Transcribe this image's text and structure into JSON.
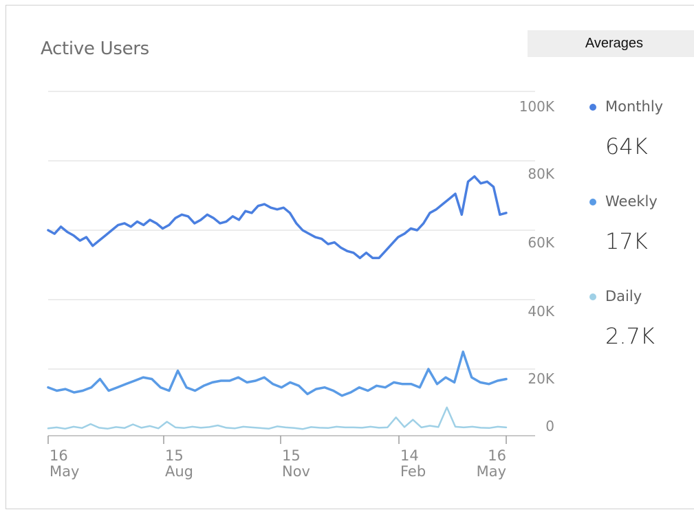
{
  "title": "Active Users",
  "averages_tab": "Averages",
  "legend": [
    {
      "label": "Monthly",
      "value": "64K",
      "color": "#4a7fe0"
    },
    {
      "label": "Weekly",
      "value": "17K",
      "color": "#5a9be6"
    },
    {
      "label": "Daily",
      "value": "2.7K",
      "color": "#9fd0e6"
    }
  ],
  "chart_data": {
    "type": "line",
    "y_ticks": [
      "100K",
      "80K",
      "60K",
      "40K",
      "20K",
      "0"
    ],
    "x_ticks": [
      {
        "day": "16",
        "month": "May"
      },
      {
        "day": "15",
        "month": "Aug"
      },
      {
        "day": "15",
        "month": "Nov"
      },
      {
        "day": "14",
        "month": "Feb"
      },
      {
        "day": "16",
        "month": "May"
      }
    ],
    "grid": true,
    "legend_position": "right",
    "series": [
      {
        "name": "Monthly",
        "color": "#4a7fe0",
        "values": [
          60000,
          59000,
          61000,
          59500,
          58500,
          57000,
          58000,
          55500,
          57000,
          58500,
          60000,
          61500,
          62000,
          61000,
          62500,
          61500,
          63000,
          62000,
          60500,
          61500,
          63500,
          64500,
          64000,
          62000,
          63000,
          64500,
          63500,
          62000,
          62500,
          64000,
          63000,
          65500,
          65000,
          67000,
          67500,
          66500,
          66000,
          66500,
          65000,
          62000,
          60000,
          59000,
          58000,
          57500,
          56000,
          56500,
          55000,
          54000,
          53500,
          52000,
          53500,
          52000,
          52000,
          54000,
          56000,
          58000,
          59000,
          60500,
          60000,
          62000,
          65000,
          66000,
          67500,
          69000,
          70500,
          64500,
          74000,
          75500,
          73500,
          74000,
          72500,
          64500,
          65000
        ]
      },
      {
        "name": "Weekly",
        "color": "#5a9be6",
        "values": [
          14500,
          13500,
          14000,
          13000,
          13500,
          14500,
          17000,
          13500,
          14500,
          15500,
          16500,
          17500,
          17000,
          14500,
          13500,
          19500,
          14500,
          13500,
          15000,
          16000,
          16500,
          16500,
          17500,
          16000,
          16500,
          17500,
          15500,
          14500,
          16000,
          15000,
          12500,
          14000,
          14500,
          13500,
          12000,
          13000,
          14500,
          13500,
          15000,
          14500,
          16000,
          15500,
          15500,
          14500,
          20000,
          15500,
          17500,
          16000,
          25000,
          17500,
          16000,
          15500,
          16500,
          17000
        ]
      },
      {
        "name": "Daily",
        "color": "#9fd0e6",
        "values": [
          2200,
          2500,
          2100,
          2700,
          2300,
          3500,
          2400,
          2100,
          2600,
          2300,
          3400,
          2400,
          2900,
          2200,
          4200,
          2500,
          2300,
          2700,
          2400,
          2600,
          3100,
          2400,
          2200,
          2700,
          2500,
          2300,
          2100,
          2800,
          2500,
          2300,
          2000,
          2600,
          2400,
          2300,
          2700,
          2500,
          2500,
          2400,
          2700,
          2400,
          2500,
          5500,
          2600,
          4800,
          2500,
          3000,
          2600,
          8500,
          2700,
          2500,
          2700,
          2400,
          2300,
          2700,
          2500
        ]
      }
    ]
  }
}
